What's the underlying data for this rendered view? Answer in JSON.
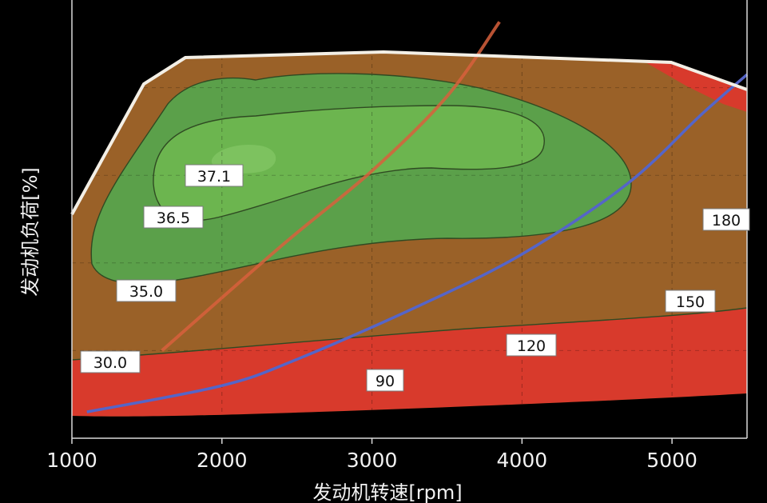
{
  "chart_data": {
    "type": "heatmap",
    "title": "",
    "xlabel": "发动机转速[rpm]",
    "ylabel": "发动机负荷[%]",
    "xlim": [
      1000,
      5500
    ],
    "ylim": [
      0,
      100
    ],
    "x_ticks": [
      "1000",
      "2000",
      "3000",
      "4000",
      "5000"
    ],
    "grid": true,
    "efficiency_contours": [
      {
        "label": "37.1",
        "level": 37.1
      },
      {
        "label": "36.5",
        "level": 36.5
      },
      {
        "label": "35.0",
        "level": 35.0
      },
      {
        "label": "30.0",
        "level": 30.0
      }
    ],
    "power_contours": [
      {
        "label": "90",
        "level": 90
      },
      {
        "label": "120",
        "level": 120
      },
      {
        "label": "150",
        "level": 150
      },
      {
        "label": "180",
        "level": 180
      }
    ],
    "lines": [
      {
        "color": "#d8603c",
        "points": [
          [
            1600,
            20
          ],
          [
            2400,
            44
          ],
          [
            3000,
            61
          ],
          [
            3500,
            78
          ],
          [
            3850,
            95
          ]
        ]
      },
      {
        "color": "#5565c8",
        "points": [
          [
            1100,
            6
          ],
          [
            2000,
            12
          ],
          [
            2500,
            18
          ],
          [
            3300,
            30
          ],
          [
            4000,
            42
          ],
          [
            4700,
            58
          ],
          [
            5200,
            74
          ],
          [
            5500,
            83
          ]
        ]
      }
    ],
    "colors": {
      "background": "#000000",
      "brown": "#9a6128",
      "green_outer": "#5ba04a",
      "green_mid": "#6cb54f",
      "green_inner": "#7dc25f",
      "red": "#d83a2c",
      "boundary": "#f3efe6"
    }
  }
}
